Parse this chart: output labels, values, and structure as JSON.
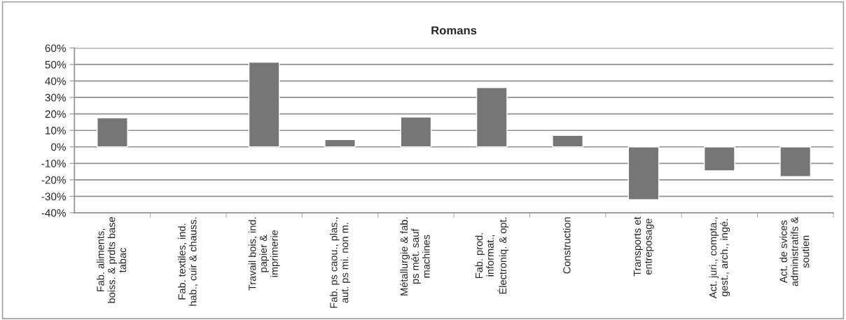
{
  "chart_data": {
    "type": "bar",
    "title": "Romans",
    "categories": [
      "Fab. aliments,\nboiss. & prdts base\ntabac",
      "Fab. textiles, ind.\nhab., cuir & chauss.",
      "Travail bois, ind.\npapier &\nimprimerie",
      "Fab. ps caou., plas.,\naut. ps mi. non m.",
      "Métallurgie & fab.\nps mét. sauf\nmachines",
      "Fab. prod.\ninformat.,\nÉlectroniq. & opt.",
      "Construction",
      "Transports et\nentreposage",
      "Act. juri., compta.,\ngest., arch., ingé.",
      "Act. de svices\nadministratifs &\nsoutien"
    ],
    "values": [
      0.176,
      null,
      0.514,
      0.044,
      0.181,
      0.36,
      0.07,
      -0.32,
      -0.145,
      -0.18
    ],
    "color": "#767676",
    "ylim": [
      -0.4,
      0.6
    ],
    "yticks": [
      {
        "value": -0.4,
        "label": "-40%"
      },
      {
        "value": -0.3,
        "label": "-30%"
      },
      {
        "value": -0.2,
        "label": "-20%"
      },
      {
        "value": -0.1,
        "label": "-10%"
      },
      {
        "value": 0,
        "label": "0%"
      },
      {
        "value": 0.1,
        "label": "10%"
      },
      {
        "value": 0.2,
        "label": "20%"
      },
      {
        "value": 0.3,
        "label": "30%"
      },
      {
        "value": 0.4,
        "label": "40%"
      },
      {
        "value": 0.5,
        "label": "50%"
      },
      {
        "value": 0.6,
        "label": "60%"
      }
    ],
    "grid": "y",
    "legend": false
  }
}
